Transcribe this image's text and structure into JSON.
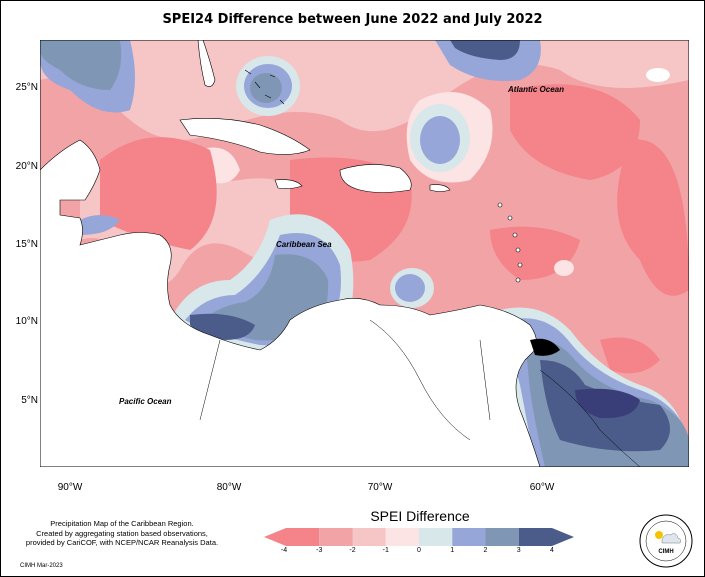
{
  "title": "SPEI24 Difference between June 2022 and July 2022",
  "map": {
    "x_ticks": [
      "90°W",
      "80°W",
      "70°W",
      "60°W"
    ],
    "y_ticks": [
      "25°N",
      "20°N",
      "15°N",
      "10°N",
      "5°N"
    ],
    "place_labels": {
      "atlantic": "Atlantic Ocean",
      "caribbean": "Caribbean Sea",
      "pacific": "Pacific Ocean"
    }
  },
  "legend": {
    "title": "SPEI Difference",
    "ticks": [
      "-4",
      "-3",
      "-2",
      "-1",
      "0",
      "1",
      "2",
      "3",
      "4"
    ],
    "colors": [
      "#f4838a",
      "#f2a3a6",
      "#f6c5c6",
      "#fce3e4",
      "#d8e7ea",
      "#96a6d8",
      "#7f97b5",
      "#4b5c8a"
    ]
  },
  "footer": {
    "line1": "Precipitation Map of the Caribbean Region.",
    "line2": "Created by aggregating station based observations,",
    "line3": "provided by CariCOF, with NCEP/NCAR Reanalysis Data.",
    "date": "CIMH Mar-2023"
  },
  "logo": {
    "text": "CIMH"
  }
}
